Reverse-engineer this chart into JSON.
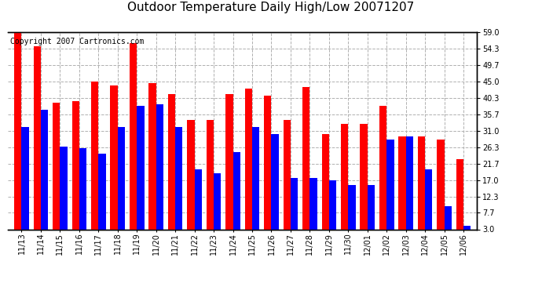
{
  "title": "Outdoor Temperature Daily High/Low 20071207",
  "copyright": "Copyright 2007 Cartronics.com",
  "background_color": "#ffffff",
  "dates": [
    "11/13",
    "11/14",
    "11/15",
    "11/16",
    "11/17",
    "11/18",
    "11/19",
    "11/20",
    "11/21",
    "11/22",
    "11/23",
    "11/24",
    "11/25",
    "11/26",
    "11/27",
    "11/28",
    "11/29",
    "11/30",
    "12/01",
    "12/02",
    "12/03",
    "12/04",
    "12/05",
    "12/06"
  ],
  "highs": [
    59.0,
    55.0,
    39.0,
    39.5,
    45.0,
    44.0,
    56.0,
    44.5,
    41.5,
    34.0,
    34.0,
    41.5,
    43.0,
    41.0,
    34.0,
    43.5,
    30.0,
    33.0,
    33.0,
    38.0,
    29.5,
    29.5,
    28.5,
    23.0
  ],
  "lows": [
    32.0,
    37.0,
    26.5,
    26.0,
    24.5,
    32.0,
    38.0,
    38.5,
    32.0,
    20.0,
    19.0,
    25.0,
    32.0,
    30.0,
    17.5,
    17.5,
    17.0,
    15.5,
    15.5,
    28.5,
    29.5,
    20.0,
    9.5,
    4.0
  ],
  "high_color": "#ff0000",
  "low_color": "#0000ff",
  "yticks": [
    3.0,
    7.7,
    12.3,
    17.0,
    21.7,
    26.3,
    31.0,
    35.7,
    40.3,
    45.0,
    49.7,
    54.3,
    59.0
  ],
  "ymin": 3.0,
  "ymax": 59.0,
  "grid_color": "#b0b0b0",
  "spine_color": "#000000",
  "title_fontsize": 11,
  "copyright_fontsize": 7,
  "tick_fontsize": 7,
  "bar_width": 0.38
}
